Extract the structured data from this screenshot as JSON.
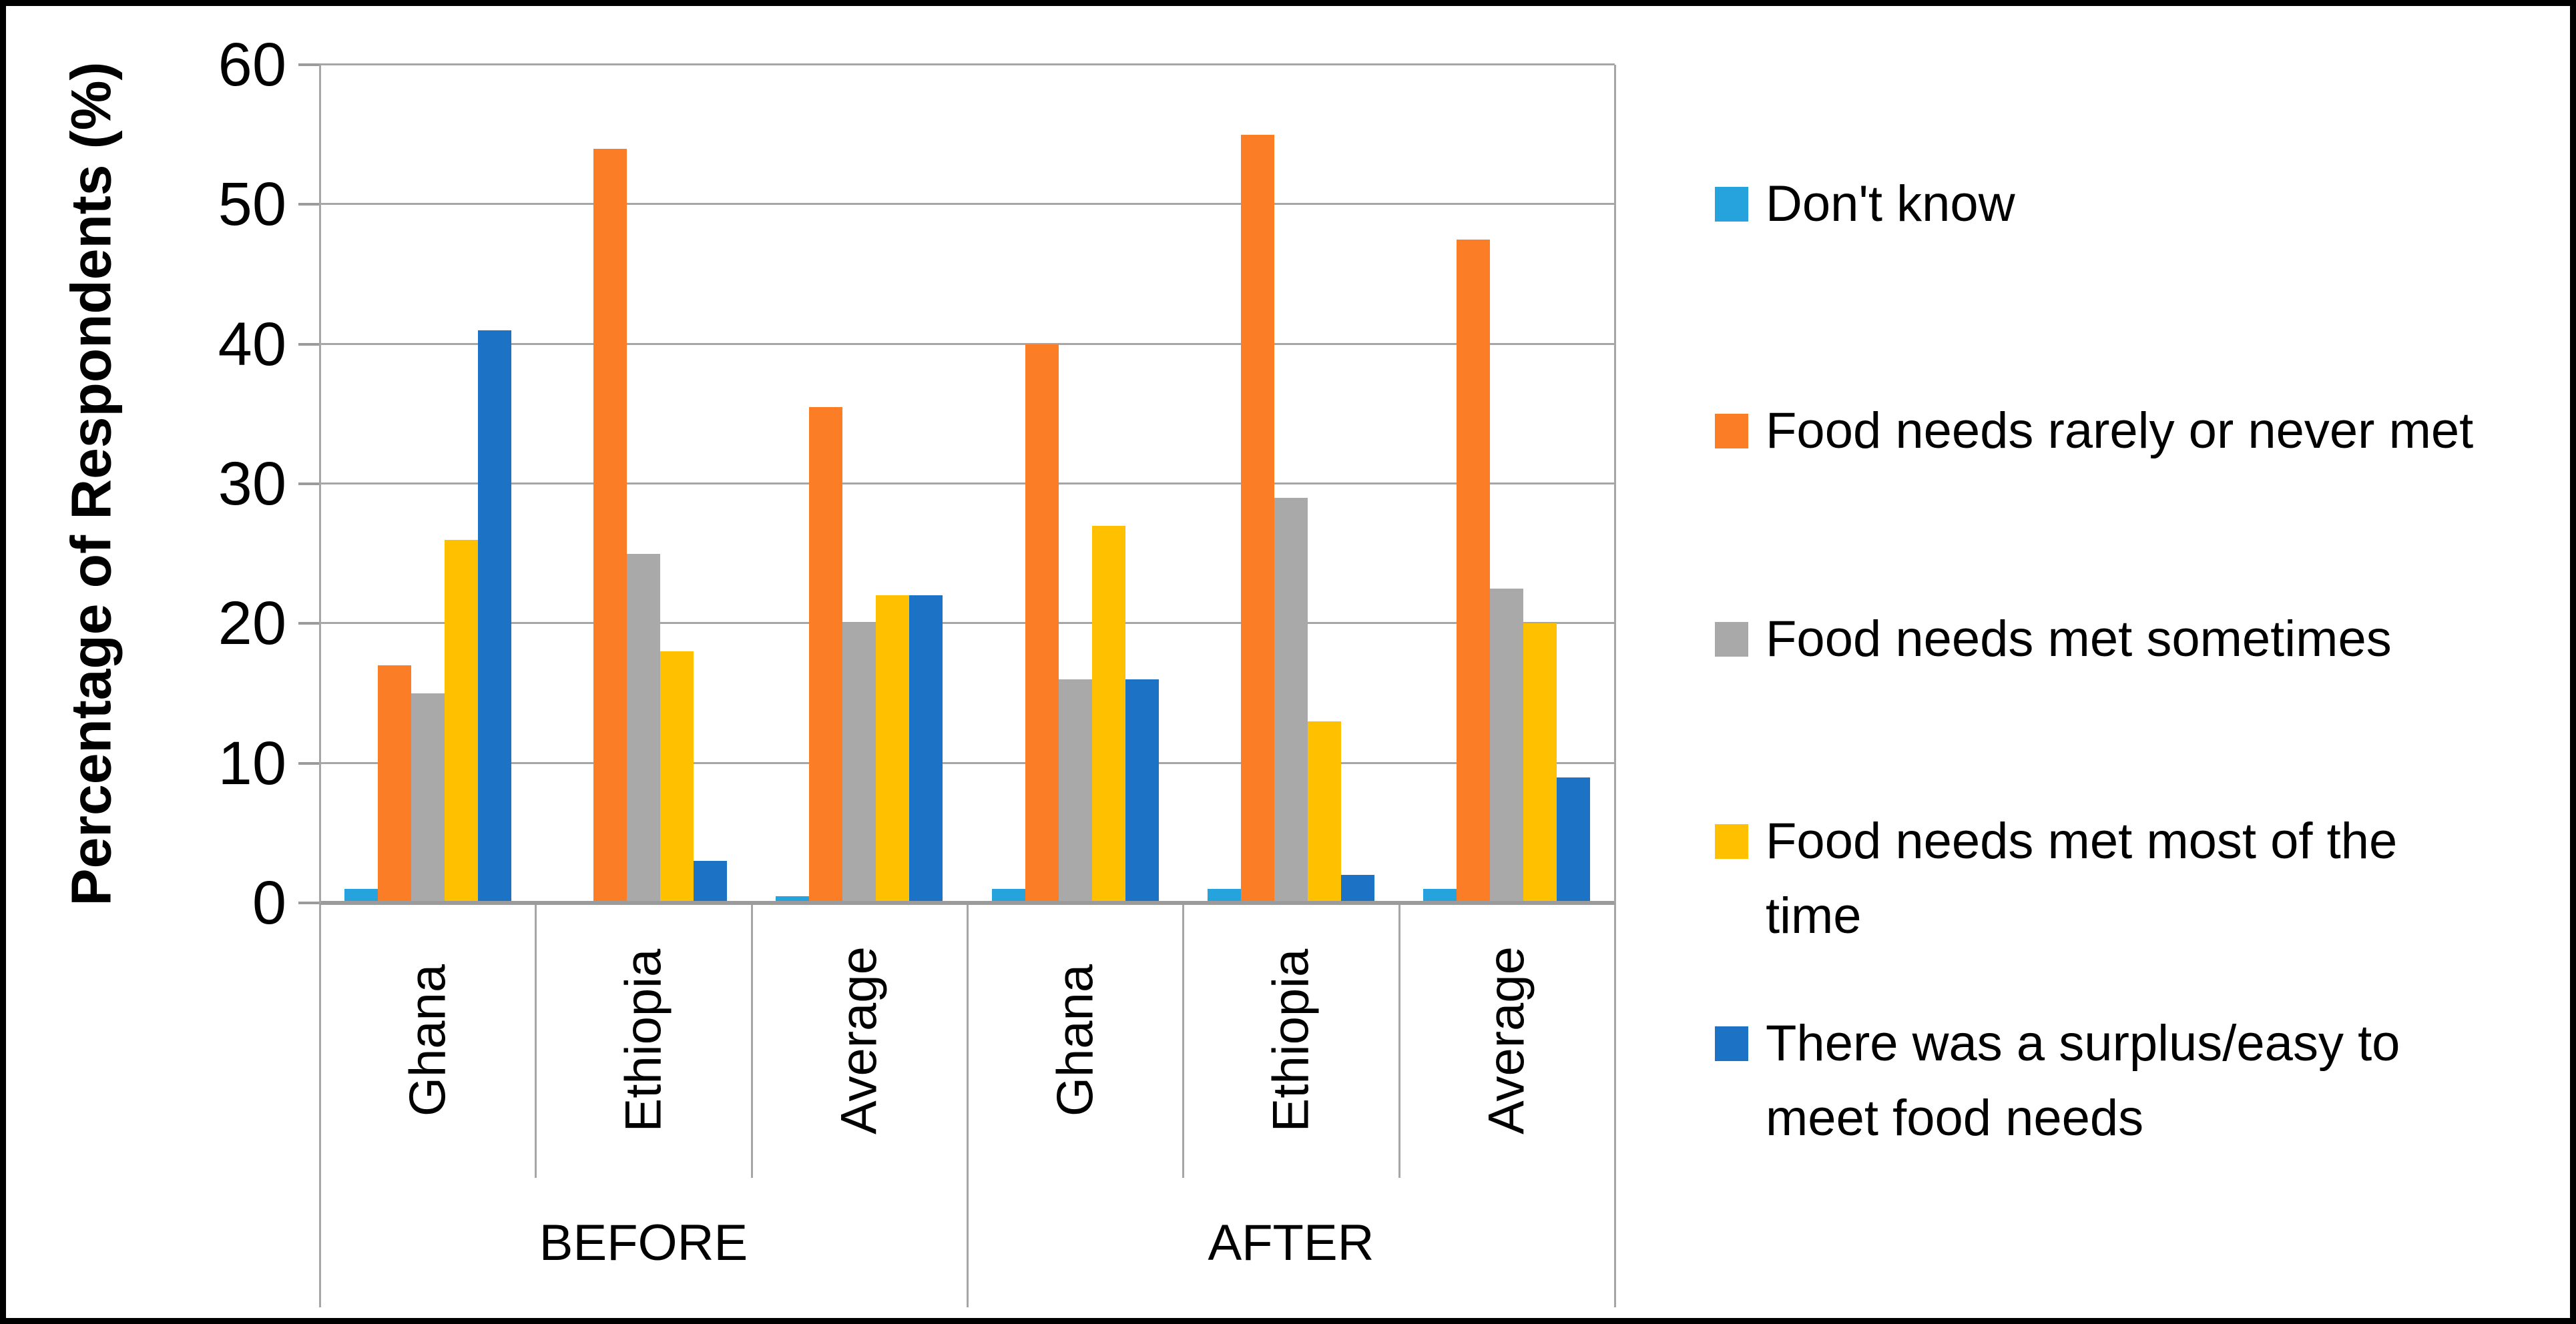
{
  "chart_data": {
    "type": "bar",
    "title": "",
    "ylabel": "Percentage of Respondents (%)",
    "ylim": [
      0,
      60
    ],
    "yticks": [
      0,
      10,
      20,
      30,
      40,
      50,
      60
    ],
    "grid": true,
    "legend_position": "right",
    "group_labels": [
      "BEFORE",
      "AFTER"
    ],
    "categories": [
      "Ghana",
      "Ethiopia",
      "Average",
      "Ghana",
      "Ethiopia",
      "Average"
    ],
    "series": [
      {
        "name": "Don't know",
        "color": "#26a2dc",
        "values": [
          1,
          0,
          0.5,
          1,
          1,
          1
        ]
      },
      {
        "name": "Food needs rarely or never met",
        "color": "#fb7d26",
        "values": [
          17,
          54,
          35.5,
          40,
          55,
          47.5
        ]
      },
      {
        "name": "Food needs met sometimes",
        "color": "#a9a9a9",
        "values": [
          15,
          25,
          20,
          16,
          29,
          22.5
        ]
      },
      {
        "name": "Food needs met most of the time",
        "color": "#ffc000",
        "values": [
          26,
          18,
          22,
          27,
          13,
          20
        ]
      },
      {
        "name": "There was a surplus/easy to meet food needs",
        "color": "#1c73c6",
        "values": [
          41,
          3,
          22,
          16,
          2,
          9
        ]
      }
    ]
  },
  "legend_item_tops": [
    41,
    381,
    693,
    996,
    1299
  ],
  "colors": {
    "gridline": "#a6a6a6",
    "axis_line": "#9b9b9b",
    "text": "#000000",
    "frame_border": "#000000"
  }
}
